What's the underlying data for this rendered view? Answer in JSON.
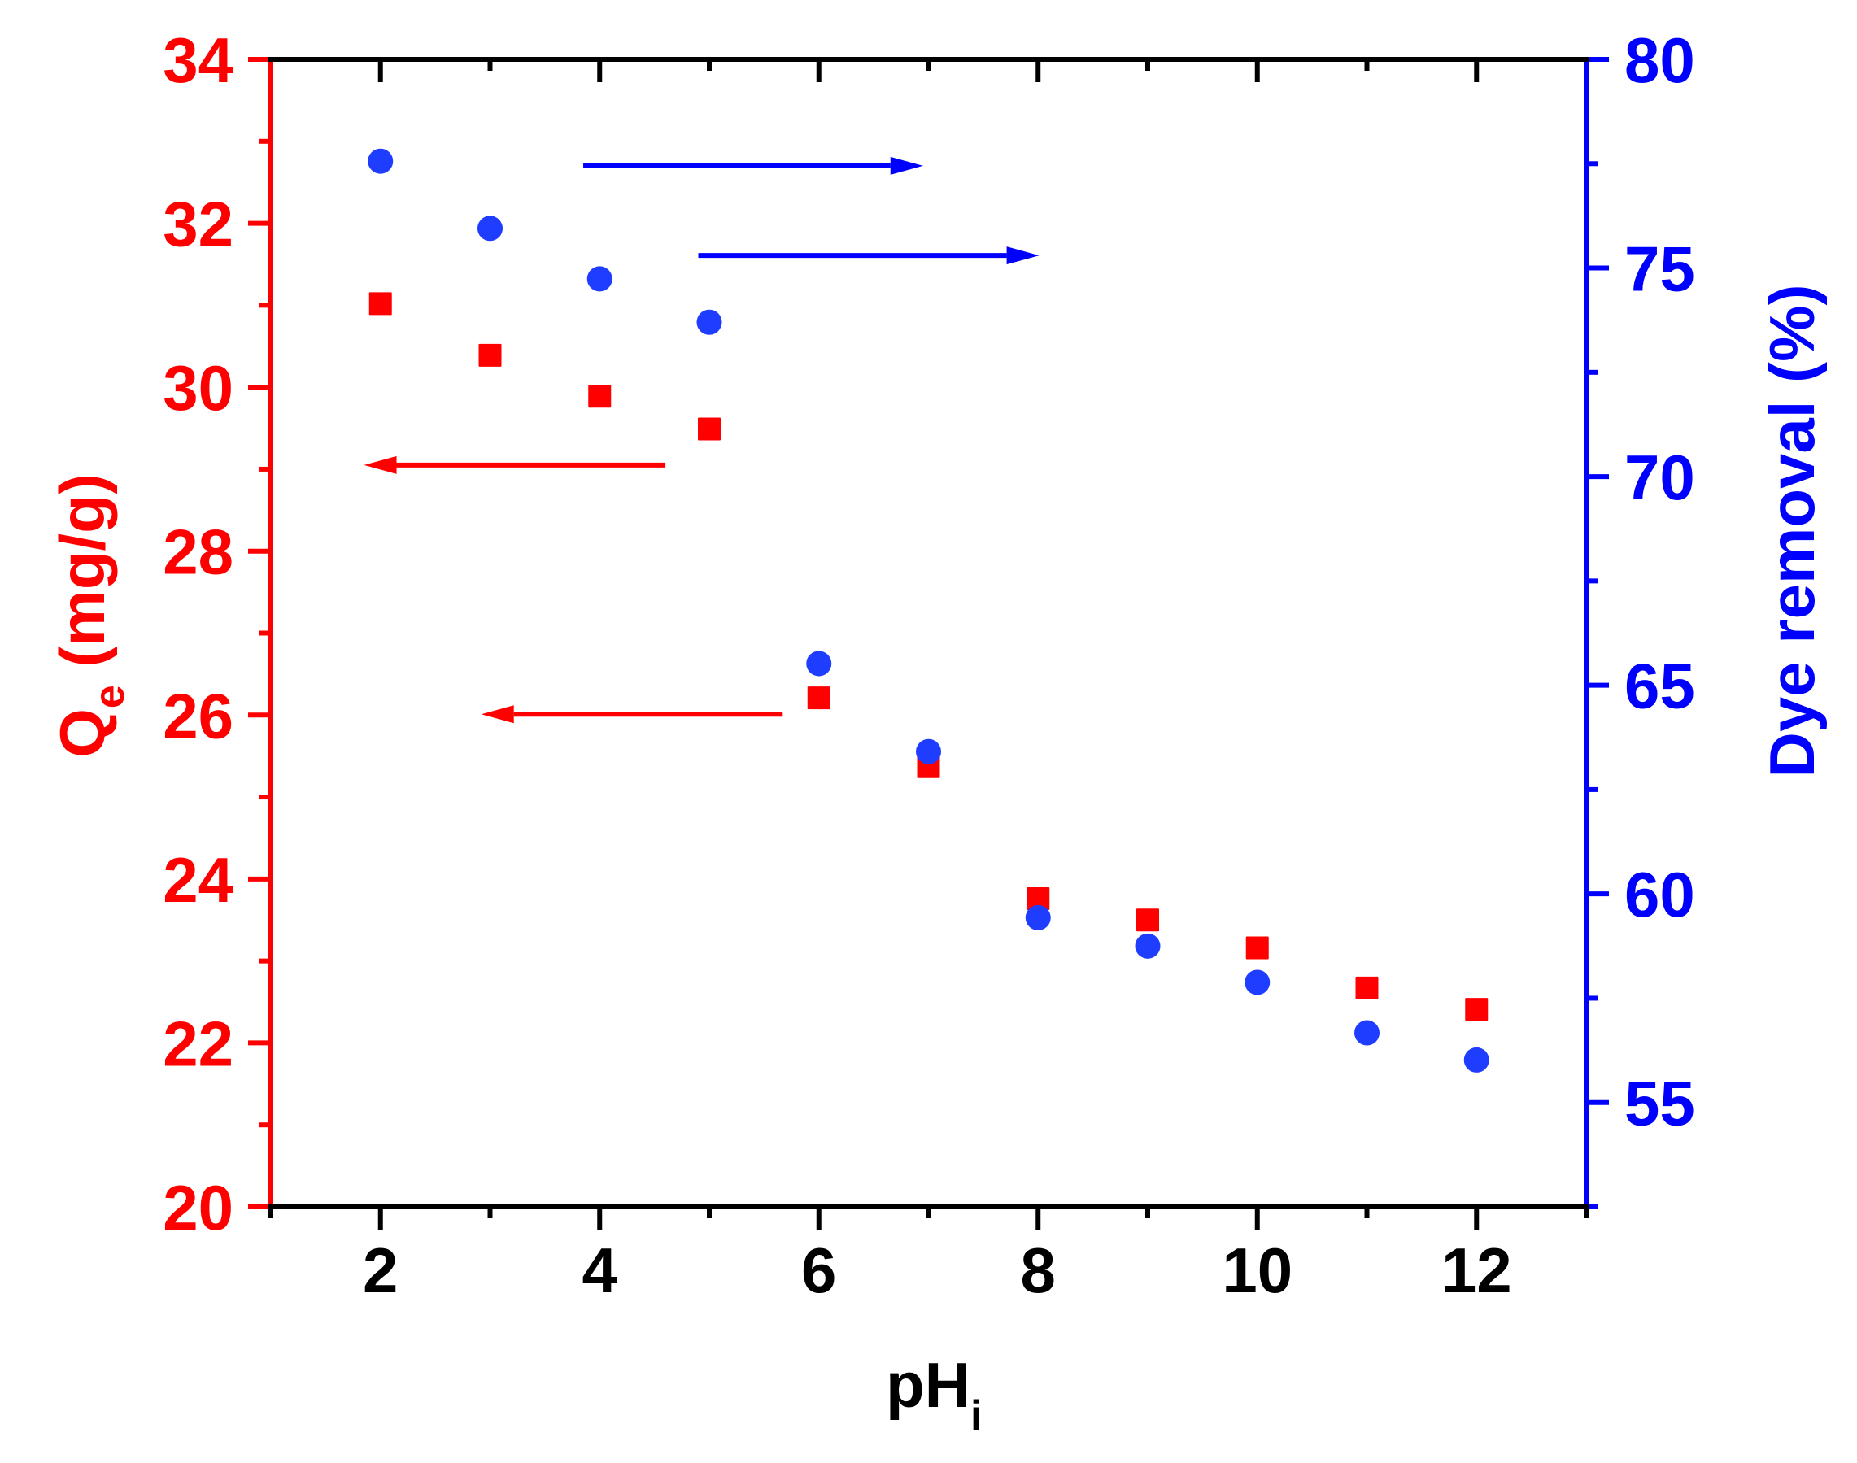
{
  "chart_data": {
    "type": "scatter",
    "title": "",
    "xlabel": "pH",
    "xlabel_subscript": "i",
    "ylabel_left": "Q",
    "ylabel_left_subscript": "e",
    "ylabel_left_unit": " (mg/g)",
    "ylabel_right": "Dye removal (%)",
    "xlim": [
      1,
      13
    ],
    "ylim_left": [
      20,
      34
    ],
    "ylim_right": [
      52.5,
      80
    ],
    "x_ticks": [
      2,
      4,
      6,
      8,
      10,
      12
    ],
    "x_minor_step": 1,
    "y_left_ticks": [
      20,
      22,
      24,
      26,
      28,
      30,
      32,
      34
    ],
    "y_left_minor_step": 1,
    "y_right_ticks": [
      55,
      60,
      65,
      70,
      75,
      80
    ],
    "y_right_minor_step": 2.5,
    "grid": false,
    "legend": null,
    "x": [
      2,
      3,
      4,
      5,
      6,
      7,
      8,
      9,
      10,
      11,
      12
    ],
    "series": [
      {
        "name": "Qe (mg/g)",
        "axis": "left",
        "marker": "square",
        "color": "#ff0000",
        "values": [
          31.02,
          30.39,
          29.89,
          29.49,
          26.21,
          25.37,
          23.76,
          23.5,
          23.16,
          22.67,
          22.41
        ]
      },
      {
        "name": "Dye removal (%)",
        "axis": "right",
        "marker": "circle",
        "color": "#1f3dff",
        "values": [
          77.56,
          75.95,
          74.74,
          73.7,
          65.52,
          63.41,
          59.43,
          58.75,
          57.88,
          56.67,
          56.02
        ]
      }
    ],
    "annotations": [
      {
        "type": "arrow",
        "direction": "right",
        "color": "#0000ff",
        "points_to": "right-axis",
        "from": [
          3.85,
          77.45
        ],
        "to": [
          6.95,
          77.45
        ]
      },
      {
        "type": "arrow",
        "direction": "right",
        "color": "#0000ff",
        "points_to": "right-axis",
        "from": [
          4.9,
          75.3
        ],
        "to": [
          8.01,
          75.3
        ]
      },
      {
        "type": "arrow",
        "direction": "left",
        "color": "#ff0000",
        "points_to": "left-axis",
        "from": [
          4.6,
          29.05
        ],
        "to": [
          1.85,
          29.05
        ]
      },
      {
        "type": "arrow",
        "direction": "left",
        "color": "#ff0000",
        "points_to": "left-axis",
        "from": [
          5.67,
          26.01
        ],
        "to": [
          2.92,
          26.01
        ]
      }
    ]
  },
  "colors": {
    "left_axis": "#ff0000",
    "right_axis": "#0000ff",
    "frame": "#000000",
    "left_markers": "#ff0000",
    "right_markers": "#1f3dff"
  }
}
